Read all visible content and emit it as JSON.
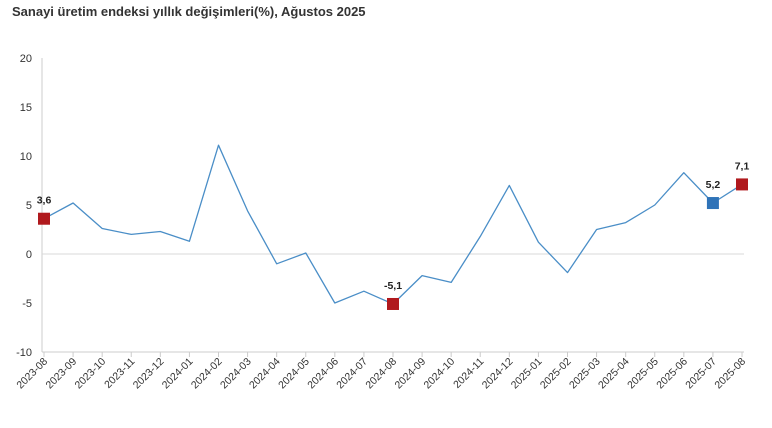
{
  "chart_data": {
    "type": "line",
    "title": "Sanayi üretim endeksi yıllık değişimleri(%), Ağustos 2025",
    "xlabel": "",
    "ylabel": "",
    "ylim": [
      -10,
      20
    ],
    "yticks": [
      20,
      15,
      10,
      5,
      0,
      -5,
      -10
    ],
    "grid": false,
    "legend": "none",
    "categories": [
      "2023-08",
      "2023-09",
      "2023-10",
      "2023-11",
      "2023-12",
      "2024-01",
      "2024-02",
      "2024-03",
      "2024-04",
      "2024-05",
      "2024-06",
      "2024-07",
      "2024-08",
      "2024-09",
      "2024-10",
      "2024-11",
      "2024-12",
      "2025-01",
      "2025-02",
      "2025-03",
      "2025-04",
      "2025-05",
      "2025-06",
      "2025-07",
      "2025-08"
    ],
    "series": [
      {
        "values": [
          3.6,
          5.2,
          2.6,
          2.0,
          2.3,
          1.3,
          11.1,
          4.4,
          -1.0,
          0.1,
          -5.0,
          -3.8,
          -5.1,
          -2.2,
          -2.9,
          1.8,
          7.0,
          1.2,
          -1.9,
          2.5,
          3.2,
          5.0,
          8.3,
          5.2,
          7.1
        ],
        "color": "#4a8ec7"
      }
    ],
    "markers": [
      {
        "category": "2023-08",
        "value": 3.6,
        "label": "3,6",
        "color": "#b0191d"
      },
      {
        "category": "2024-08",
        "value": -5.1,
        "label": "-5,1",
        "color": "#b0191d"
      },
      {
        "category": "2025-07",
        "value": 5.2,
        "label": "5,2",
        "color": "#2f73b8"
      },
      {
        "category": "2025-08",
        "value": 7.1,
        "label": "7,1",
        "color": "#b0191d"
      }
    ],
    "zero_line_color": "#d9d9d9",
    "axis_color": "#cccccc"
  }
}
